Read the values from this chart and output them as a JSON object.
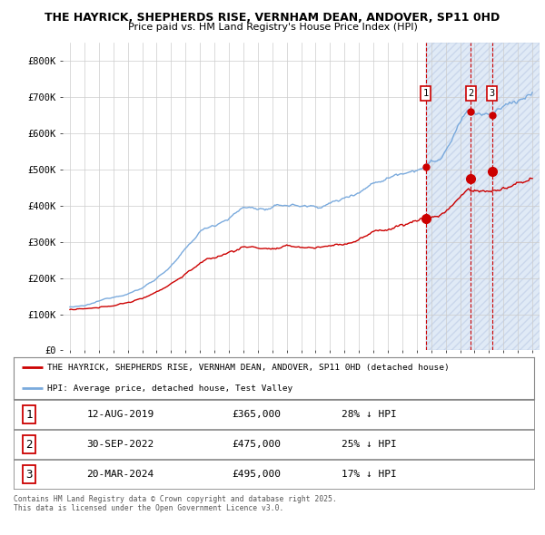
{
  "title1": "THE HAYRICK, SHEPHERDS RISE, VERNHAM DEAN, ANDOVER, SP11 0HD",
  "title2": "Price paid vs. HM Land Registry's House Price Index (HPI)",
  "background_color": "#ffffff",
  "plot_bg_color": "#ffffff",
  "grid_color": "#cccccc",
  "hpi_color": "#7aaadd",
  "price_color": "#cc0000",
  "sale_marker_color": "#cc0000",
  "yticks": [
    0,
    100000,
    200000,
    300000,
    400000,
    500000,
    600000,
    700000,
    800000
  ],
  "ytick_labels": [
    "£0",
    "£100K",
    "£200K",
    "£300K",
    "£400K",
    "£500K",
    "£600K",
    "£700K",
    "£800K"
  ],
  "ylim": [
    0,
    850000
  ],
  "xlim_start": 1994.5,
  "xlim_end": 2027.5,
  "xticks": [
    1995,
    1996,
    1997,
    1998,
    1999,
    2000,
    2001,
    2002,
    2003,
    2004,
    2005,
    2006,
    2007,
    2008,
    2009,
    2010,
    2011,
    2012,
    2013,
    2014,
    2015,
    2016,
    2017,
    2018,
    2019,
    2020,
    2021,
    2022,
    2023,
    2024,
    2025,
    2026,
    2027
  ],
  "sales": [
    {
      "num": 1,
      "date": "12-AUG-2019",
      "year": 2019.62,
      "price": 365000,
      "pct": "28%",
      "label": "1"
    },
    {
      "num": 2,
      "date": "30-SEP-2022",
      "year": 2022.75,
      "price": 475000,
      "pct": "25%",
      "label": "2"
    },
    {
      "num": 3,
      "date": "20-MAR-2024",
      "year": 2024.21,
      "price": 495000,
      "pct": "17%",
      "label": "3"
    }
  ],
  "legend_line1": "THE HAYRICK, SHEPHERDS RISE, VERNHAM DEAN, ANDOVER, SP11 0HD (detached house)",
  "legend_line2": "HPI: Average price, detached house, Test Valley",
  "footnote": "Contains HM Land Registry data © Crown copyright and database right 2025.\nThis data is licensed under the Open Government Licence v3.0.",
  "vline_color": "#cc0000",
  "shade_color": "#ccddf0",
  "hatch_color": "#aabbcc"
}
